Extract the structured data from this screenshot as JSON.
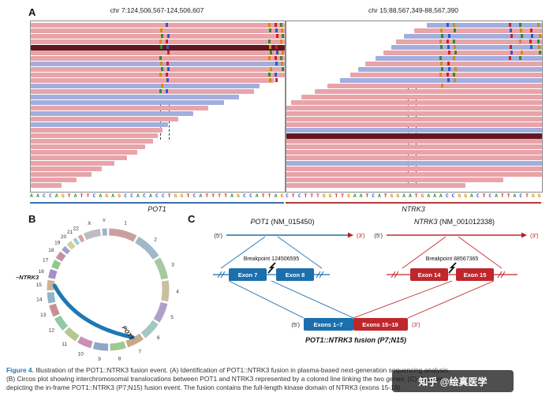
{
  "figure": {
    "panelA": {
      "label": "A",
      "left": {
        "region": "chr 7:124,506,567-124,506,607",
        "gene": "POT1",
        "sequence": "AACCAGTATTCAGAGCCACACCTGGTCATTTTAGCCATTAG",
        "gene_line_color": "#3a6ea8"
      },
      "right": {
        "region": "chr 15:88,567,349-88,567,390",
        "gene": "NTRK3",
        "sequence": "CTCTTTGGTTGAATCATGGAATGAAACCGGACTCATTACTGG",
        "gene_line_color": "#b23b3b"
      },
      "read_colors": {
        "p": "#e8a4a9",
        "b": "#a3aede",
        "d": "#641721"
      },
      "base_colors": {
        "A": "#2e8b2e",
        "C": "#2b5bc7",
        "G": "#d98a00",
        "T": "#cc2222"
      },
      "left_reads": [
        [
          0,
          100,
          "p"
        ],
        [
          0,
          100,
          "p"
        ],
        [
          0,
          100,
          "p"
        ],
        [
          0,
          100,
          "p"
        ],
        [
          0,
          100,
          "d"
        ],
        [
          0,
          100,
          "p"
        ],
        [
          0,
          100,
          "p"
        ],
        [
          0,
          100,
          "b"
        ],
        [
          0,
          100,
          "p"
        ],
        [
          0,
          100,
          "p"
        ],
        [
          0,
          96,
          "p"
        ],
        [
          0,
          90,
          "b"
        ],
        [
          0,
          88,
          "p"
        ],
        [
          0,
          82,
          "b"
        ],
        [
          0,
          76,
          "b"
        ],
        [
          0,
          70,
          "p"
        ],
        [
          0,
          64,
          "b"
        ],
        [
          0,
          58,
          "p"
        ],
        [
          0,
          54,
          "b"
        ],
        [
          0,
          52,
          "p"
        ],
        [
          0,
          50,
          "p"
        ],
        [
          0,
          48,
          "p"
        ],
        [
          0,
          45,
          "p"
        ],
        [
          0,
          42,
          "p"
        ],
        [
          0,
          38,
          "p"
        ],
        [
          0,
          33,
          "p"
        ],
        [
          0,
          28,
          "p"
        ],
        [
          0,
          24,
          "p"
        ],
        [
          0,
          18,
          "p"
        ],
        [
          0,
          12,
          "p"
        ]
      ],
      "right_reads": [
        [
          55,
          100,
          "b"
        ],
        [
          50,
          100,
          "p"
        ],
        [
          46,
          100,
          "b"
        ],
        [
          43,
          100,
          "p"
        ],
        [
          41,
          100,
          "b"
        ],
        [
          38,
          100,
          "p"
        ],
        [
          35,
          100,
          "b"
        ],
        [
          31,
          100,
          "p"
        ],
        [
          28,
          100,
          "b"
        ],
        [
          25,
          100,
          "p"
        ],
        [
          21,
          100,
          "b"
        ],
        [
          16,
          100,
          "p"
        ],
        [
          11,
          100,
          "p"
        ],
        [
          6,
          100,
          "p"
        ],
        [
          2,
          100,
          "p"
        ],
        [
          0,
          100,
          "p"
        ],
        [
          0,
          100,
          "p"
        ],
        [
          0,
          100,
          "p"
        ],
        [
          0,
          100,
          "p"
        ],
        [
          0,
          100,
          "b"
        ],
        [
          0,
          100,
          "d"
        ],
        [
          0,
          100,
          "p"
        ],
        [
          0,
          100,
          "p"
        ],
        [
          0,
          100,
          "p"
        ],
        [
          0,
          100,
          "p"
        ],
        [
          0,
          100,
          "b"
        ],
        [
          0,
          100,
          "p"
        ],
        [
          0,
          100,
          "p"
        ],
        [
          0,
          85,
          "p"
        ],
        [
          0,
          70,
          "p"
        ]
      ],
      "left_speckles": [
        {
          "x": 50.5,
          "rows": [
            0,
            12
          ]
        },
        {
          "x": 53,
          "rows": [
            0,
            12
          ]
        },
        {
          "x": 93.5,
          "rows": [
            0,
            10
          ]
        },
        {
          "x": 96,
          "rows": [
            0,
            10
          ]
        },
        {
          "x": 98,
          "rows": [
            0,
            9
          ]
        }
      ],
      "right_speckles": [
        {
          "x": 60,
          "rows": [
            0,
            11
          ]
        },
        {
          "x": 62.5,
          "rows": [
            0,
            11
          ]
        },
        {
          "x": 65,
          "rows": [
            0,
            10
          ]
        },
        {
          "x": 87,
          "rows": [
            0,
            6
          ]
        },
        {
          "x": 91,
          "rows": [
            0,
            6
          ]
        },
        {
          "x": 95,
          "rows": [
            0,
            5
          ]
        },
        {
          "x": 98,
          "rows": [
            0,
            5
          ]
        }
      ]
    },
    "panelB": {
      "label": "B",
      "chromosomes": [
        {
          "name": "1",
          "len": 249,
          "color": "#c9a0a0"
        },
        {
          "name": "2",
          "len": 243,
          "color": "#a0b8c9"
        },
        {
          "name": "3",
          "len": 198,
          "color": "#a8c9a0"
        },
        {
          "name": "4",
          "len": 190,
          "color": "#c9c0a0"
        },
        {
          "name": "5",
          "len": 182,
          "color": "#b0a0c9"
        },
        {
          "name": "6",
          "len": 171,
          "color": "#a0c9c0"
        },
        {
          "name": "7",
          "len": 159,
          "color": "#c9aa88"
        },
        {
          "name": "8",
          "len": 146,
          "color": "#9fc98f"
        },
        {
          "name": "9",
          "len": 141,
          "color": "#8fa6c9"
        },
        {
          "name": "10",
          "len": 136,
          "color": "#c98fb4"
        },
        {
          "name": "11",
          "len": 135,
          "color": "#b4c98f"
        },
        {
          "name": "12",
          "len": 134,
          "color": "#8fc9a6"
        },
        {
          "name": "13",
          "len": 115,
          "color": "#c98f8f"
        },
        {
          "name": "14",
          "len": 107,
          "color": "#8fb4c9"
        },
        {
          "name": "15",
          "len": 102,
          "color": "#c9b48f"
        },
        {
          "name": "16",
          "len": 90,
          "color": "#a68fc9"
        },
        {
          "name": "17",
          "len": 83,
          "color": "#8fc98f"
        },
        {
          "name": "18",
          "len": 80,
          "color": "#c98fa6"
        },
        {
          "name": "19",
          "len": 59,
          "color": "#a0a0d0"
        },
        {
          "name": "20",
          "len": 63,
          "color": "#d0d0a0"
        },
        {
          "name": "21",
          "len": 48,
          "color": "#a0d0d0"
        },
        {
          "name": "22",
          "len": 51,
          "color": "#d0a8a0"
        },
        {
          "name": "X",
          "len": 155,
          "color": "#bdbdbd"
        },
        {
          "name": "Y",
          "len": 57,
          "color": "#9fb6c9"
        }
      ],
      "fusion": {
        "from": "15",
        "to": "7",
        "arc_color": "#1f77b4",
        "label_left": "–NTRK3",
        "label_right": "POT1"
      }
    },
    "panelC": {
      "label": "C",
      "pot1": {
        "gene": "POT1",
        "accession": " (NM_015450)",
        "five": "(5')",
        "three": "(3')",
        "breakpoint_label": "Breakpoint 124506595",
        "exon_left": "Exon 7",
        "exon_right": "Exon 8",
        "color": "#1b6fad"
      },
      "ntrk3": {
        "gene": "NTRK3",
        "accession": " (NM_001012338)",
        "five": "(5')",
        "three": "(3')",
        "breakpoint_label": "Breakpoint 88567365",
        "exon_left": "Exon 14",
        "exon_right": "Exon 15",
        "color": "#c0272d"
      },
      "fusion": {
        "five": "(5')",
        "three": "(3')",
        "left_box": "Exons 1–7",
        "right_box": "Exons 15–19",
        "label": "POT1::NTRK3 fusion (P7;N15)"
      }
    },
    "caption": {
      "label": "Figure 4.",
      "lines": [
        "Illustration of the POT1::NTRK3 fusion event. (A) Identification of POT1::NTRK3 fusion in plasma-based next-generation sequencing analysis.",
        "(B) Circos plot showing interchromosomal translocations between POT1 and NTRK3 represented by a colored line linking the two genes. (C) Diagram",
        "depicting the in-frame POT1::NTRK3 (P7;N15) fusion event. The fusion contains the full-length kinase domain of NTRK3 (exons 15-19)."
      ]
    },
    "watermark": "知乎 @绘真医学"
  }
}
